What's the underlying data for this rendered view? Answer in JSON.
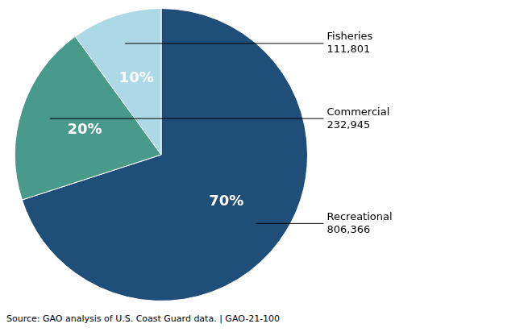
{
  "chart_data": {
    "type": "pie",
    "values": [
      70,
      20,
      10
    ],
    "value_labels": [
      "70%",
      "20%",
      "10%"
    ],
    "colors": [
      "#1F4E79",
      "#4A9A8C",
      "#ADD8E6"
    ],
    "data_labels": true,
    "annotations": [
      "Recreational\n806,366",
      "Commercial\n232,945",
      "Fisheries\n111,801"
    ],
    "footnote": "Source: GAO analysis of U.S. Coast Guard data.  |  GAO-21-100"
  }
}
